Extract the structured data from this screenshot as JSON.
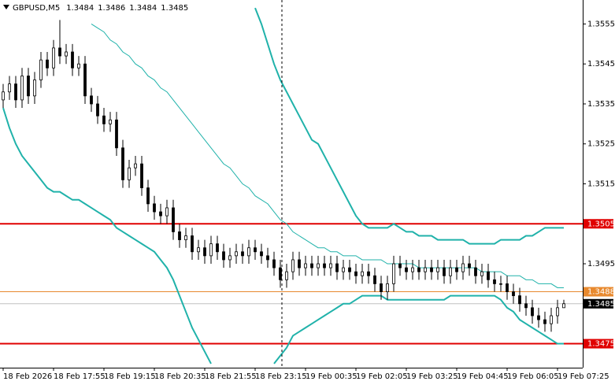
{
  "chart_data": {
    "type": "candlestick",
    "symbol": "GBPUSD,M5",
    "ylim": [
      1.3469,
      1.3561
    ],
    "yticks": [
      1.3555,
      1.3545,
      1.3535,
      1.3525,
      1.3515,
      1.3495
    ],
    "candle_up_color": "#ffffff",
    "candle_down_color": "#000000",
    "categories": [
      "18 Feb 2026",
      null,
      null,
      null,
      null,
      null,
      null,
      null,
      "18 Feb 17:55",
      null,
      null,
      null,
      null,
      null,
      null,
      null,
      "18 Feb 19:15",
      null,
      null,
      null,
      null,
      null,
      null,
      null,
      "18 Feb 20:35",
      null,
      null,
      null,
      null,
      null,
      null,
      null,
      "18 Feb 21:55",
      null,
      null,
      null,
      null,
      null,
      null,
      null,
      "18 Feb 23:15",
      null,
      null,
      null,
      null,
      null,
      null,
      null,
      "19 Feb 00:35",
      null,
      null,
      null,
      null,
      null,
      null,
      null,
      "19 Feb 02:05",
      null,
      null,
      null,
      null,
      null,
      null,
      null,
      "19 Feb 03:25",
      null,
      null,
      null,
      null,
      null,
      null,
      null,
      "19 Feb 04:45",
      null,
      null,
      null,
      null,
      null,
      null,
      null,
      "19 Feb 06:05",
      null,
      null,
      null,
      null,
      null,
      null,
      null,
      "19 Feb 07:25",
      null
    ],
    "ohlc": [
      [
        1.3536,
        1.354,
        1.3534,
        1.3538
      ],
      [
        1.3538,
        1.3542,
        1.3536,
        1.354
      ],
      [
        1.354,
        1.3542,
        1.3534,
        1.3536
      ],
      [
        1.3536,
        1.3544,
        1.3534,
        1.3542
      ],
      [
        1.3542,
        1.3544,
        1.3535,
        1.3537
      ],
      [
        1.3537,
        1.3543,
        1.3535,
        1.3541
      ],
      [
        1.3541,
        1.3548,
        1.3539,
        1.3546
      ],
      [
        1.3546,
        1.3548,
        1.3542,
        1.3544
      ],
      [
        1.3544,
        1.3551,
        1.3542,
        1.3549
      ],
      [
        1.3549,
        1.3556,
        1.3545,
        1.3547
      ],
      [
        1.3547,
        1.355,
        1.3545,
        1.3548
      ],
      [
        1.3548,
        1.355,
        1.3542,
        1.3544
      ],
      [
        1.3544,
        1.3547,
        1.3542,
        1.3545
      ],
      [
        1.3545,
        1.3547,
        1.3535,
        1.3537
      ],
      [
        1.3537,
        1.3539,
        1.3533,
        1.3535
      ],
      [
        1.3535,
        1.3537,
        1.353,
        1.3532
      ],
      [
        1.3532,
        1.3534,
        1.3528,
        1.353
      ],
      [
        1.353,
        1.3533,
        1.3528,
        1.3531
      ],
      [
        1.3531,
        1.3533,
        1.3522,
        1.3524
      ],
      [
        1.3524,
        1.3526,
        1.3514,
        1.3516
      ],
      [
        1.3516,
        1.3521,
        1.3514,
        1.3519
      ],
      [
        1.3519,
        1.3522,
        1.3517,
        1.352
      ],
      [
        1.352,
        1.3522,
        1.3512,
        1.3514
      ],
      [
        1.3514,
        1.3516,
        1.3508,
        1.351
      ],
      [
        1.351,
        1.3512,
        1.3506,
        1.3508
      ],
      [
        1.3508,
        1.351,
        1.3505,
        1.3507
      ],
      [
        1.3507,
        1.3511,
        1.3505,
        1.3509
      ],
      [
        1.3509,
        1.3511,
        1.3501,
        1.3503
      ],
      [
        1.3503,
        1.3505,
        1.3499,
        1.3501
      ],
      [
        1.3501,
        1.3504,
        1.3499,
        1.3502
      ],
      [
        1.3502,
        1.3504,
        1.3496,
        1.3498
      ],
      [
        1.3498,
        1.3501,
        1.3496,
        1.3499
      ],
      [
        1.3499,
        1.3501,
        1.3495,
        1.3497
      ],
      [
        1.3497,
        1.3502,
        1.3495,
        1.35
      ],
      [
        1.35,
        1.3502,
        1.3496,
        1.3498
      ],
      [
        1.3498,
        1.35,
        1.3494,
        1.3496
      ],
      [
        1.3496,
        1.3499,
        1.3494,
        1.3497
      ],
      [
        1.3497,
        1.35,
        1.3495,
        1.3498
      ],
      [
        1.3498,
        1.35,
        1.3495,
        1.3497
      ],
      [
        1.3497,
        1.3501,
        1.3495,
        1.3499
      ],
      [
        1.3499,
        1.3501,
        1.3496,
        1.3498
      ],
      [
        1.3498,
        1.35,
        1.3495,
        1.3497
      ],
      [
        1.3497,
        1.3499,
        1.3494,
        1.3496
      ],
      [
        1.3496,
        1.3498,
        1.3492,
        1.3494
      ],
      [
        1.3494,
        1.3496,
        1.3489,
        1.3491
      ],
      [
        1.3491,
        1.3495,
        1.3489,
        1.3493
      ],
      [
        1.3493,
        1.3498,
        1.3491,
        1.3496
      ],
      [
        1.3496,
        1.3498,
        1.3492,
        1.3494
      ],
      [
        1.3494,
        1.3497,
        1.3492,
        1.3495
      ],
      [
        1.3495,
        1.3497,
        1.3492,
        1.3494
      ],
      [
        1.3494,
        1.3497,
        1.3492,
        1.3495
      ],
      [
        1.3495,
        1.3497,
        1.3492,
        1.3494
      ],
      [
        1.3494,
        1.3497,
        1.3492,
        1.3495
      ],
      [
        1.3495,
        1.3497,
        1.3491,
        1.3493
      ],
      [
        1.3493,
        1.3496,
        1.3491,
        1.3494
      ],
      [
        1.3494,
        1.3496,
        1.3491,
        1.3493
      ],
      [
        1.3493,
        1.3495,
        1.349,
        1.3492
      ],
      [
        1.3492,
        1.3495,
        1.349,
        1.3493
      ],
      [
        1.3493,
        1.3495,
        1.349,
        1.3492
      ],
      [
        1.3492,
        1.3494,
        1.3488,
        1.349
      ],
      [
        1.349,
        1.3492,
        1.3486,
        1.3488
      ],
      [
        1.3488,
        1.3492,
        1.3486,
        1.349
      ],
      [
        1.349,
        1.3497,
        1.3488,
        1.3495
      ],
      [
        1.3495,
        1.3497,
        1.3492,
        1.3494
      ],
      [
        1.3494,
        1.3496,
        1.3491,
        1.3493
      ],
      [
        1.3493,
        1.3496,
        1.3491,
        1.3494
      ],
      [
        1.3494,
        1.3496,
        1.3491,
        1.3493
      ],
      [
        1.3493,
        1.3496,
        1.3491,
        1.3494
      ],
      [
        1.3494,
        1.3496,
        1.3491,
        1.3493
      ],
      [
        1.3493,
        1.3496,
        1.3491,
        1.3494
      ],
      [
        1.3494,
        1.3496,
        1.349,
        1.3492
      ],
      [
        1.3492,
        1.3496,
        1.349,
        1.3494
      ],
      [
        1.3494,
        1.3496,
        1.3491,
        1.3493
      ],
      [
        1.3493,
        1.3497,
        1.3491,
        1.3495
      ],
      [
        1.3495,
        1.3497,
        1.3492,
        1.3494
      ],
      [
        1.3494,
        1.3496,
        1.349,
        1.3492
      ],
      [
        1.3492,
        1.3495,
        1.349,
        1.3493
      ],
      [
        1.3493,
        1.3495,
        1.3489,
        1.3491
      ],
      [
        1.3491,
        1.3493,
        1.3488,
        1.349
      ],
      [
        1.349,
        1.3492,
        1.3488,
        1.349
      ],
      [
        1.349,
        1.3492,
        1.3486,
        1.3488
      ],
      [
        1.3488,
        1.349,
        1.3485,
        1.3487
      ],
      [
        1.3487,
        1.3489,
        1.3483,
        1.3485
      ],
      [
        1.3485,
        1.3487,
        1.3482,
        1.3484
      ],
      [
        1.3484,
        1.3486,
        1.348,
        1.3482
      ],
      [
        1.3482,
        1.3484,
        1.3479,
        1.3481
      ],
      [
        1.3481,
        1.3483,
        1.3478,
        1.348
      ],
      [
        1.348,
        1.3484,
        1.3478,
        1.3482
      ],
      [
        1.3482,
        1.3486,
        1.348,
        1.3484
      ],
      [
        1.3484,
        1.3486,
        1.3484,
        1.3485
      ]
    ],
    "series": [
      {
        "color": "#20b2aa",
        "width": 2,
        "values": [
          null,
          null,
          null,
          null,
          null,
          null,
          null,
          null,
          null,
          null,
          null,
          null,
          null,
          null,
          null,
          null,
          null,
          null,
          null,
          null,
          null,
          null,
          null,
          null,
          null,
          null,
          null,
          null,
          null,
          null,
          null,
          null,
          null,
          null,
          null,
          null,
          null,
          null,
          null,
          null,
          1.3559,
          1.3555,
          1.355,
          1.3545,
          1.3541,
          1.3538,
          1.3535,
          1.3532,
          1.3529,
          1.3526,
          1.3525,
          1.3522,
          1.3519,
          1.3516,
          1.3513,
          1.351,
          1.3507,
          1.3505,
          1.3504,
          1.3504,
          1.3504,
          1.3504,
          1.3505,
          1.3504,
          1.3503,
          1.3503,
          1.3502,
          1.3502,
          1.3502,
          1.3501,
          1.3501,
          1.3501,
          1.3501,
          1.3501,
          1.35,
          1.35,
          1.35,
          1.35,
          1.35,
          1.3501,
          1.3501,
          1.3501,
          1.3501,
          1.3502,
          1.3502,
          1.3503,
          1.3504,
          1.3504,
          1.3504,
          1.3504
        ]
      },
      {
        "color": "#20b2aa",
        "width": 1,
        "values": [
          null,
          null,
          null,
          null,
          null,
          null,
          null,
          null,
          null,
          null,
          null,
          null,
          null,
          null,
          1.3555,
          1.3554,
          1.3553,
          1.3551,
          1.355,
          1.3548,
          1.3547,
          1.3545,
          1.3544,
          1.3542,
          1.3541,
          1.3539,
          1.3538,
          1.3536,
          1.3534,
          1.3532,
          1.353,
          1.3528,
          1.3526,
          1.3524,
          1.3522,
          1.352,
          1.3519,
          1.3517,
          1.3515,
          1.3514,
          1.3512,
          1.3511,
          1.351,
          1.3508,
          1.3506,
          1.3505,
          1.3503,
          1.3502,
          1.3501,
          1.35,
          1.3499,
          1.3499,
          1.3498,
          1.3498,
          1.3497,
          1.3497,
          1.3497,
          1.3496,
          1.3496,
          1.3496,
          1.3496,
          1.3495,
          1.3495,
          1.3495,
          1.3495,
          1.3495,
          1.3494,
          1.3494,
          1.3494,
          1.3494,
          1.3494,
          1.3494,
          1.3494,
          1.3494,
          1.3494,
          1.3494,
          1.3493,
          1.3493,
          1.3493,
          1.3493,
          1.3492,
          1.3492,
          1.3492,
          1.3491,
          1.3491,
          1.349,
          1.349,
          1.349,
          1.3489,
          1.3489
        ]
      },
      {
        "color": "#20b2aa",
        "width": 2,
        "values": [
          1.3534,
          1.3529,
          1.3525,
          1.3522,
          1.352,
          1.3518,
          1.3516,
          1.3514,
          1.3513,
          1.3513,
          1.3512,
          1.3511,
          1.3511,
          1.351,
          1.3509,
          1.3508,
          1.3507,
          1.3506,
          1.3504,
          1.3503,
          1.3502,
          1.3501,
          1.35,
          1.3499,
          1.3498,
          1.3496,
          1.3494,
          1.3491,
          1.3487,
          1.3483,
          1.3479,
          1.3476,
          1.3473,
          1.347,
          null,
          null,
          null,
          null,
          null,
          null,
          null,
          null,
          null,
          1.347,
          1.3472,
          1.3474,
          1.3477,
          1.3478,
          1.3479,
          1.348,
          1.3481,
          1.3482,
          1.3483,
          1.3484,
          1.3485,
          1.3485,
          1.3486,
          1.3487,
          1.3487,
          1.3487,
          1.3487,
          1.3486,
          1.3486,
          1.3486,
          1.3486,
          1.3486,
          1.3486,
          1.3486,
          1.3486,
          1.3486,
          1.3486,
          1.3487,
          1.3487,
          1.3487,
          1.3487,
          1.3487,
          1.3487,
          1.3487,
          1.3487,
          1.3486,
          1.3484,
          1.3483,
          1.3481,
          1.348,
          1.3479,
          1.3478,
          1.3477,
          1.3476,
          1.3475,
          1.3475
        ]
      }
    ],
    "levels": [
      {
        "value": 1.3505,
        "color": "#e00000"
      },
      {
        "value": 1.3488,
        "color": "#e8892e"
      },
      {
        "value": 1.3475,
        "color": "#e00000"
      }
    ],
    "bid": 1.3485,
    "bid_color": "#c0c0c0"
  }
}
